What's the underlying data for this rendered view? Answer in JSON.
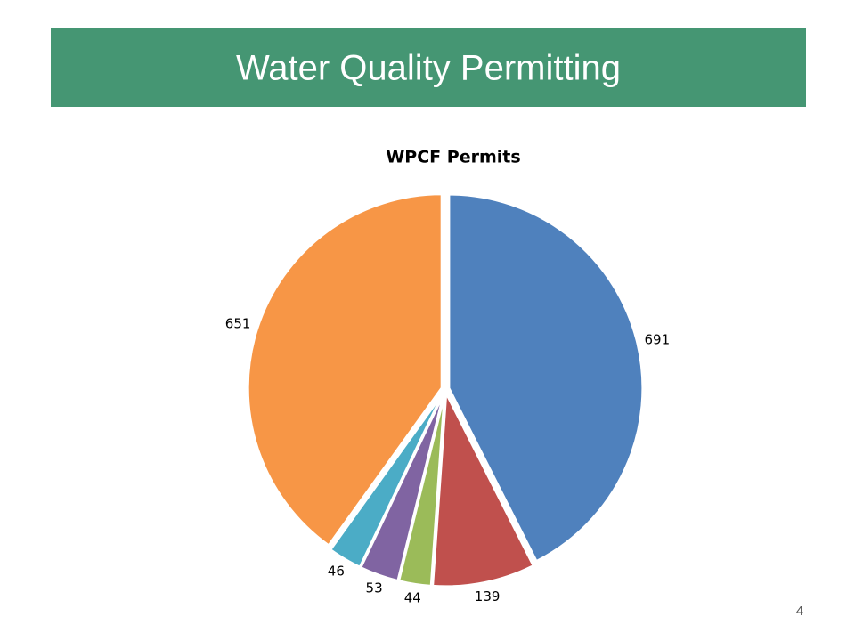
{
  "slide": {
    "title": "Water Quality Permitting",
    "page_number": 4
  },
  "chart_data": {
    "type": "pie",
    "title": "WPCF Permits",
    "values": [
      691,
      139,
      44,
      53,
      46,
      651
    ],
    "colors": [
      "#4f81bd",
      "#c0504d",
      "#9bbb59",
      "#8064a2",
      "#4bacc6",
      "#f79646"
    ]
  }
}
